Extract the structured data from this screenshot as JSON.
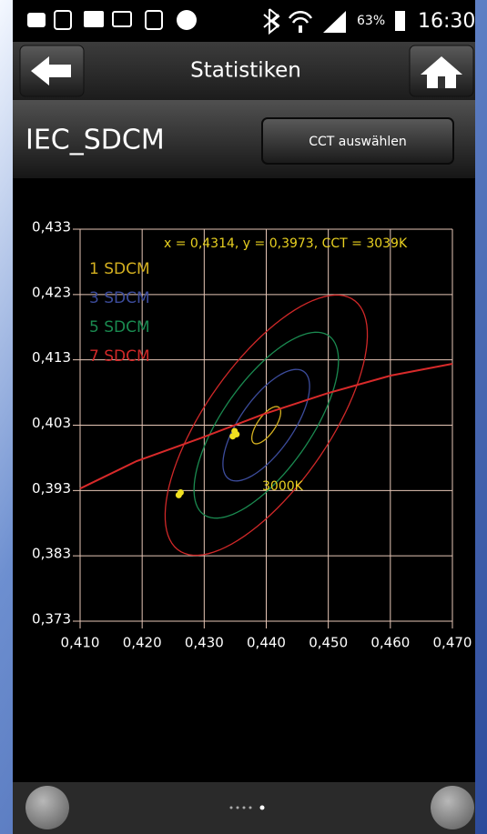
{
  "status_bar": {
    "battery": "63%",
    "time": "16:30"
  },
  "header": {
    "title": "Statistiken"
  },
  "toolbar": {
    "title": "IEC_SDCM",
    "button": "CCT auswählen"
  },
  "chart_data": {
    "type": "sdcm",
    "annotation": "x = 0,4314, y = 0,3973, CCT = 3039K",
    "cct_label": "3000K",
    "xlim": [
      0.41,
      0.47
    ],
    "ylim": [
      0.373,
      0.433
    ],
    "xticks": [
      {
        "value": 0.41,
        "label": "0,410"
      },
      {
        "value": 0.42,
        "label": "0,420"
      },
      {
        "value": 0.43,
        "label": "0,430"
      },
      {
        "value": 0.44,
        "label": "0,440"
      },
      {
        "value": 0.45,
        "label": "0,450"
      },
      {
        "value": 0.46,
        "label": "0,460"
      },
      {
        "value": 0.47,
        "label": "0,470"
      }
    ],
    "yticks": [
      {
        "value": 0.373,
        "label": "0,373"
      },
      {
        "value": 0.383,
        "label": "0,383"
      },
      {
        "value": 0.393,
        "label": "0,393"
      },
      {
        "value": 0.403,
        "label": "0,403"
      },
      {
        "value": 0.413,
        "label": "0,413"
      },
      {
        "value": 0.423,
        "label": "0,423"
      },
      {
        "value": 0.433,
        "label": "0,433"
      }
    ],
    "grid": true,
    "grid_color": "#e6c6b6",
    "center_x": 0.44,
    "center_y": 0.403,
    "semi_major": 0.0034,
    "semi_minor": 0.0014,
    "angle_deg": 53.1,
    "ellipses": [
      {
        "name": "1 SDCM",
        "color": "#d4b020",
        "steps": 1
      },
      {
        "name": "3 SDCM",
        "color": "#3c4c9c",
        "steps": 3
      },
      {
        "name": "5 SDCM",
        "color": "#1a8a50",
        "steps": 5
      },
      {
        "name": "7 SDCM",
        "color": "#d02828",
        "steps": 7
      }
    ],
    "locus": {
      "color": "#d82a2a",
      "x": [
        0.41,
        0.4191,
        0.4294,
        0.4396,
        0.4499,
        0.4601,
        0.47
      ],
      "y": [
        0.3933,
        0.3975,
        0.401,
        0.4047,
        0.4079,
        0.4106,
        0.4124
      ]
    },
    "points": {
      "color": "#f0e020",
      "x": [
        0.4349,
        0.4352,
        0.4346,
        0.4262,
        0.4259
      ],
      "y": [
        0.4021,
        0.4016,
        0.4013,
        0.3927,
        0.3923
      ]
    }
  }
}
